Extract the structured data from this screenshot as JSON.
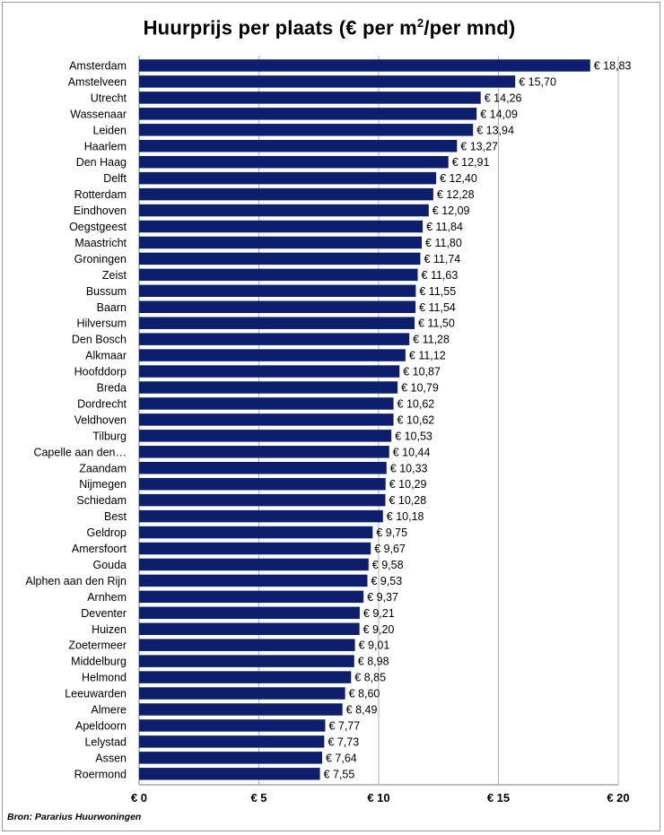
{
  "title": {
    "main": "Huurprijs per plaats  (€ per m",
    "sup": "2",
    "tail": "/per mnd)"
  },
  "source": "Bron: Pararius Huurwoningen",
  "colors": {
    "bar": "#0d1e6c",
    "grid": "#b0b0b0"
  },
  "chart_data": {
    "type": "bar",
    "orientation": "horizontal",
    "title": "Huurprijs per plaats (€ per m2/per mnd)",
    "xlabel": "",
    "ylabel": "",
    "xlim": [
      0,
      20
    ],
    "x_ticks": [
      0,
      5,
      10,
      15,
      20
    ],
    "x_tick_labels": [
      "€ 0",
      "€ 5",
      "€ 10",
      "€ 15",
      "€ 20"
    ],
    "grid": "vertical",
    "categories": [
      "Amsterdam",
      "Amstelveen",
      "Utrecht",
      "Wassenaar",
      "Leiden",
      "Haarlem",
      "Den Haag",
      "Delft",
      "Rotterdam",
      "Eindhoven",
      "Oegstgeest",
      "Maastricht",
      "Groningen",
      "Zeist",
      "Bussum",
      "Baarn",
      "Hilversum",
      "Den Bosch",
      "Alkmaar",
      "Hoofddorp",
      "Breda",
      "Dordrecht",
      "Veldhoven",
      "Tilburg",
      "Capelle aan den…",
      "Zaandam",
      "Nijmegen",
      "Schiedam",
      "Best",
      "Geldrop",
      "Amersfoort",
      "Gouda",
      "Alphen aan den Rijn",
      "Arnhem",
      "Deventer",
      "Huizen",
      "Zoetermeer",
      "Middelburg",
      "Helmond",
      "Leeuwarden",
      "Almere",
      "Apeldoorn",
      "Lelystad",
      "Assen",
      "Roermond"
    ],
    "values": [
      18.83,
      15.7,
      14.26,
      14.09,
      13.94,
      13.27,
      12.91,
      12.4,
      12.28,
      12.09,
      11.84,
      11.8,
      11.74,
      11.63,
      11.55,
      11.54,
      11.5,
      11.28,
      11.12,
      10.87,
      10.79,
      10.62,
      10.62,
      10.53,
      10.44,
      10.33,
      10.29,
      10.28,
      10.18,
      9.75,
      9.67,
      9.58,
      9.53,
      9.37,
      9.21,
      9.2,
      9.01,
      8.98,
      8.85,
      8.6,
      8.49,
      7.77,
      7.73,
      7.64,
      7.55
    ],
    "value_labels": [
      "€ 18,83",
      "€ 15,70",
      "€ 14,26",
      "€ 14,09",
      "€ 13,94",
      "€ 13,27",
      "€ 12,91",
      "€ 12,40",
      "€ 12,28",
      "€ 12,09",
      "€ 11,84",
      "€ 11,80",
      "€ 11,74",
      "€ 11,63",
      "€ 11,55",
      "€ 11,54",
      "€ 11,50",
      "€ 11,28",
      "€ 11,12",
      "€ 10,87",
      "€ 10,79",
      "€ 10,62",
      "€ 10,62",
      "€ 10,53",
      "€ 10,44",
      "€ 10,33",
      "€ 10,29",
      "€ 10,28",
      "€ 10,18",
      "€ 9,75",
      "€ 9,67",
      "€ 9,58",
      "€ 9,53",
      "€ 9,37",
      "€ 9,21",
      "€ 9,20",
      "€ 9,01",
      "€ 8,98",
      "€ 8,85",
      "€ 8,60",
      "€ 8,49",
      "€ 7,77",
      "€ 7,73",
      "€ 7,64",
      "€ 7,55"
    ]
  }
}
